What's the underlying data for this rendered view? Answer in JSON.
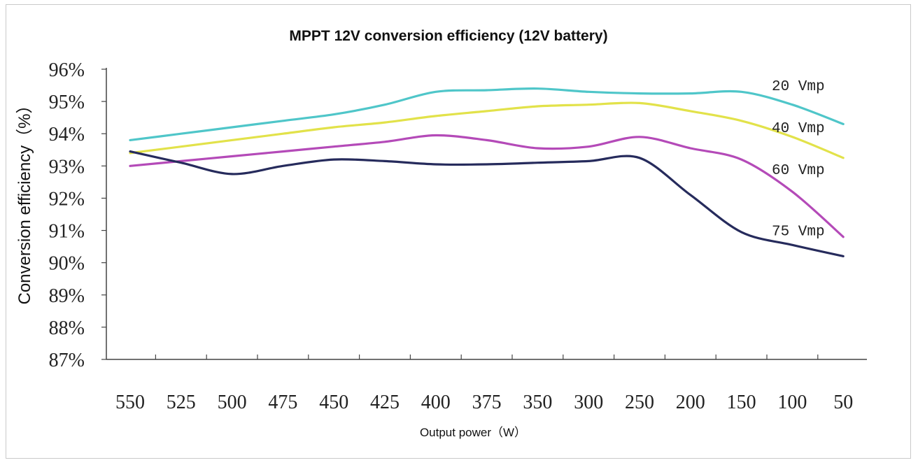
{
  "chart_data": {
    "type": "line",
    "title": "MPPT 12V conversion efficiency (12V battery)",
    "xlabel": "Output power（W）",
    "ylabel": "Conversion efficiency（%）",
    "categories": [
      "550",
      "525",
      "500",
      "475",
      "450",
      "425",
      "400",
      "375",
      "350",
      "300",
      "250",
      "200",
      "150",
      "100",
      "50"
    ],
    "y_ticks": [
      "96%",
      "95%",
      "94%",
      "93%",
      "92%",
      "91%",
      "90%",
      "89%",
      "88%",
      "87%"
    ],
    "ylim": [
      87,
      96
    ],
    "grid": false,
    "legend": "inline-right",
    "series": [
      {
        "name": "20 Vmp",
        "color": "#4fc6c9",
        "label_at": 95.5,
        "values": [
          93.8,
          94.0,
          94.2,
          94.4,
          94.6,
          94.9,
          95.3,
          95.35,
          95.4,
          95.3,
          95.25,
          95.25,
          95.3,
          94.9,
          94.3
        ]
      },
      {
        "name": "40 Vmp",
        "color": "#e2e24a",
        "label_at": 94.2,
        "values": [
          93.4,
          93.6,
          93.8,
          94.0,
          94.2,
          94.35,
          94.55,
          94.7,
          94.85,
          94.9,
          94.95,
          94.7,
          94.4,
          93.9,
          93.25
        ]
      },
      {
        "name": "60 Vmp",
        "color": "#b44ab8",
        "label_at": 92.9,
        "values": [
          93.0,
          93.15,
          93.3,
          93.45,
          93.6,
          93.75,
          93.95,
          93.8,
          93.55,
          93.6,
          93.9,
          93.55,
          93.2,
          92.2,
          90.8
        ]
      },
      {
        "name": "75 Vmp",
        "color": "#262b5c",
        "label_at": 91.0,
        "values": [
          93.45,
          93.1,
          92.75,
          93.0,
          93.2,
          93.15,
          93.05,
          93.05,
          93.1,
          93.15,
          93.25,
          92.1,
          90.95,
          90.55,
          90.2
        ]
      }
    ]
  }
}
